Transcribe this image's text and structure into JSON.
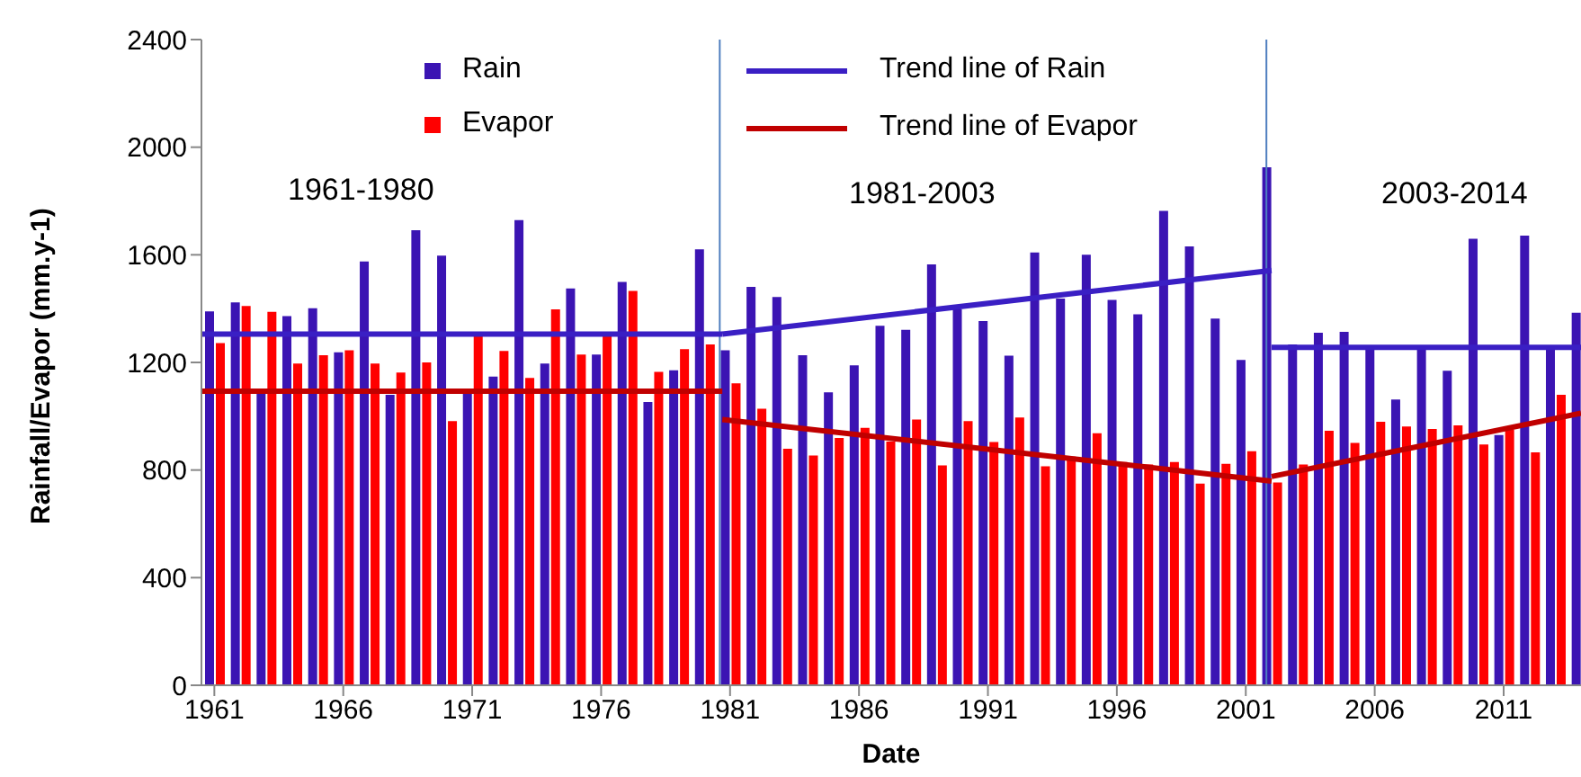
{
  "chart_data": {
    "type": "bar",
    "xlabel": "Date",
    "ylabel": "Rainfall/Evapor (mm.y-1)",
    "x": [
      1961,
      1962,
      1963,
      1964,
      1965,
      1966,
      1967,
      1968,
      1969,
      1970,
      1971,
      1972,
      1973,
      1974,
      1975,
      1976,
      1977,
      1978,
      1979,
      1980,
      1981,
      1982,
      1983,
      1984,
      1985,
      1986,
      1987,
      1988,
      1989,
      1990,
      1991,
      1992,
      1993,
      1994,
      1995,
      1996,
      1997,
      1998,
      1999,
      2000,
      2001,
      2002,
      2003,
      2004,
      2005,
      2006,
      2007,
      2008,
      2009,
      2010,
      2011,
      2012,
      2013,
      2014
    ],
    "series": [
      {
        "name": "Rain",
        "color": "#3b14b3",
        "values": [
          1390,
          1423,
          1089,
          1372,
          1401,
          1238,
          1575,
          1080,
          1691,
          1597,
          1091,
          1147,
          1729,
          1196,
          1475,
          1229,
          1499,
          1053,
          1171,
          1620,
          1245,
          1481,
          1443,
          1227,
          1089,
          1189,
          1336,
          1321,
          1564,
          1397,
          1354,
          1225,
          1609,
          1437,
          1600,
          1432,
          1379,
          1763,
          1631,
          1363,
          1209,
          1925,
          1267,
          1310,
          1314,
          1249,
          1062,
          1249,
          1169,
          1660,
          930,
          1671,
          1249,
          1385
        ]
      },
      {
        "name": "Evapor",
        "color": "#ff0000",
        "values": [
          1272,
          1410,
          1388,
          1196,
          1227,
          1245,
          1196,
          1162,
          1200,
          982,
          1301,
          1243,
          1142,
          1397,
          1229,
          1301,
          1466,
          1165,
          1249,
          1267,
          1122,
          1028,
          879,
          854,
          919,
          957,
          906,
          988,
          817,
          982,
          904,
          995,
          814,
          850,
          937,
          830,
          821,
          830,
          750,
          823,
          870,
          754,
          821,
          946,
          901,
          979,
          962,
          953,
          966,
          895,
          950,
          866,
          1080,
          null
        ]
      },
      {
        "name": "Trend line of Rain",
        "type": "line",
        "color": "#3a1fc4",
        "x": [
          1960.5,
          1980.7,
          1980.7,
          2002,
          2002,
          2014
        ],
        "values": [
          1305,
          1305,
          1305,
          1542,
          1256,
          1256
        ]
      },
      {
        "name": "Trend line of Evapor",
        "type": "line",
        "color": "#c00000",
        "x": [
          1960.5,
          1980.7,
          1980.7,
          2002,
          2002,
          2014
        ],
        "values": [
          1093,
          1093,
          988,
          759,
          776,
          1011
        ]
      }
    ],
    "xlim": [
      1960.5,
      2014
    ],
    "xticks": [
      1961,
      1966,
      1971,
      1976,
      1981,
      1986,
      1991,
      1996,
      2001,
      2006,
      2011
    ],
    "ylim": [
      0,
      2400
    ],
    "yticks": [
      0,
      400,
      800,
      1200,
      1600,
      2000,
      2400
    ],
    "ref_lines": [
      {
        "axis": "x",
        "value": 1980.6,
        "color": "#4f7fbf"
      },
      {
        "axis": "x",
        "value": 2001.8,
        "color": "#4f7fbf"
      }
    ],
    "annotations": [
      "1961-1980",
      "1981-2003",
      "2003-2014"
    ],
    "legend": "top"
  }
}
